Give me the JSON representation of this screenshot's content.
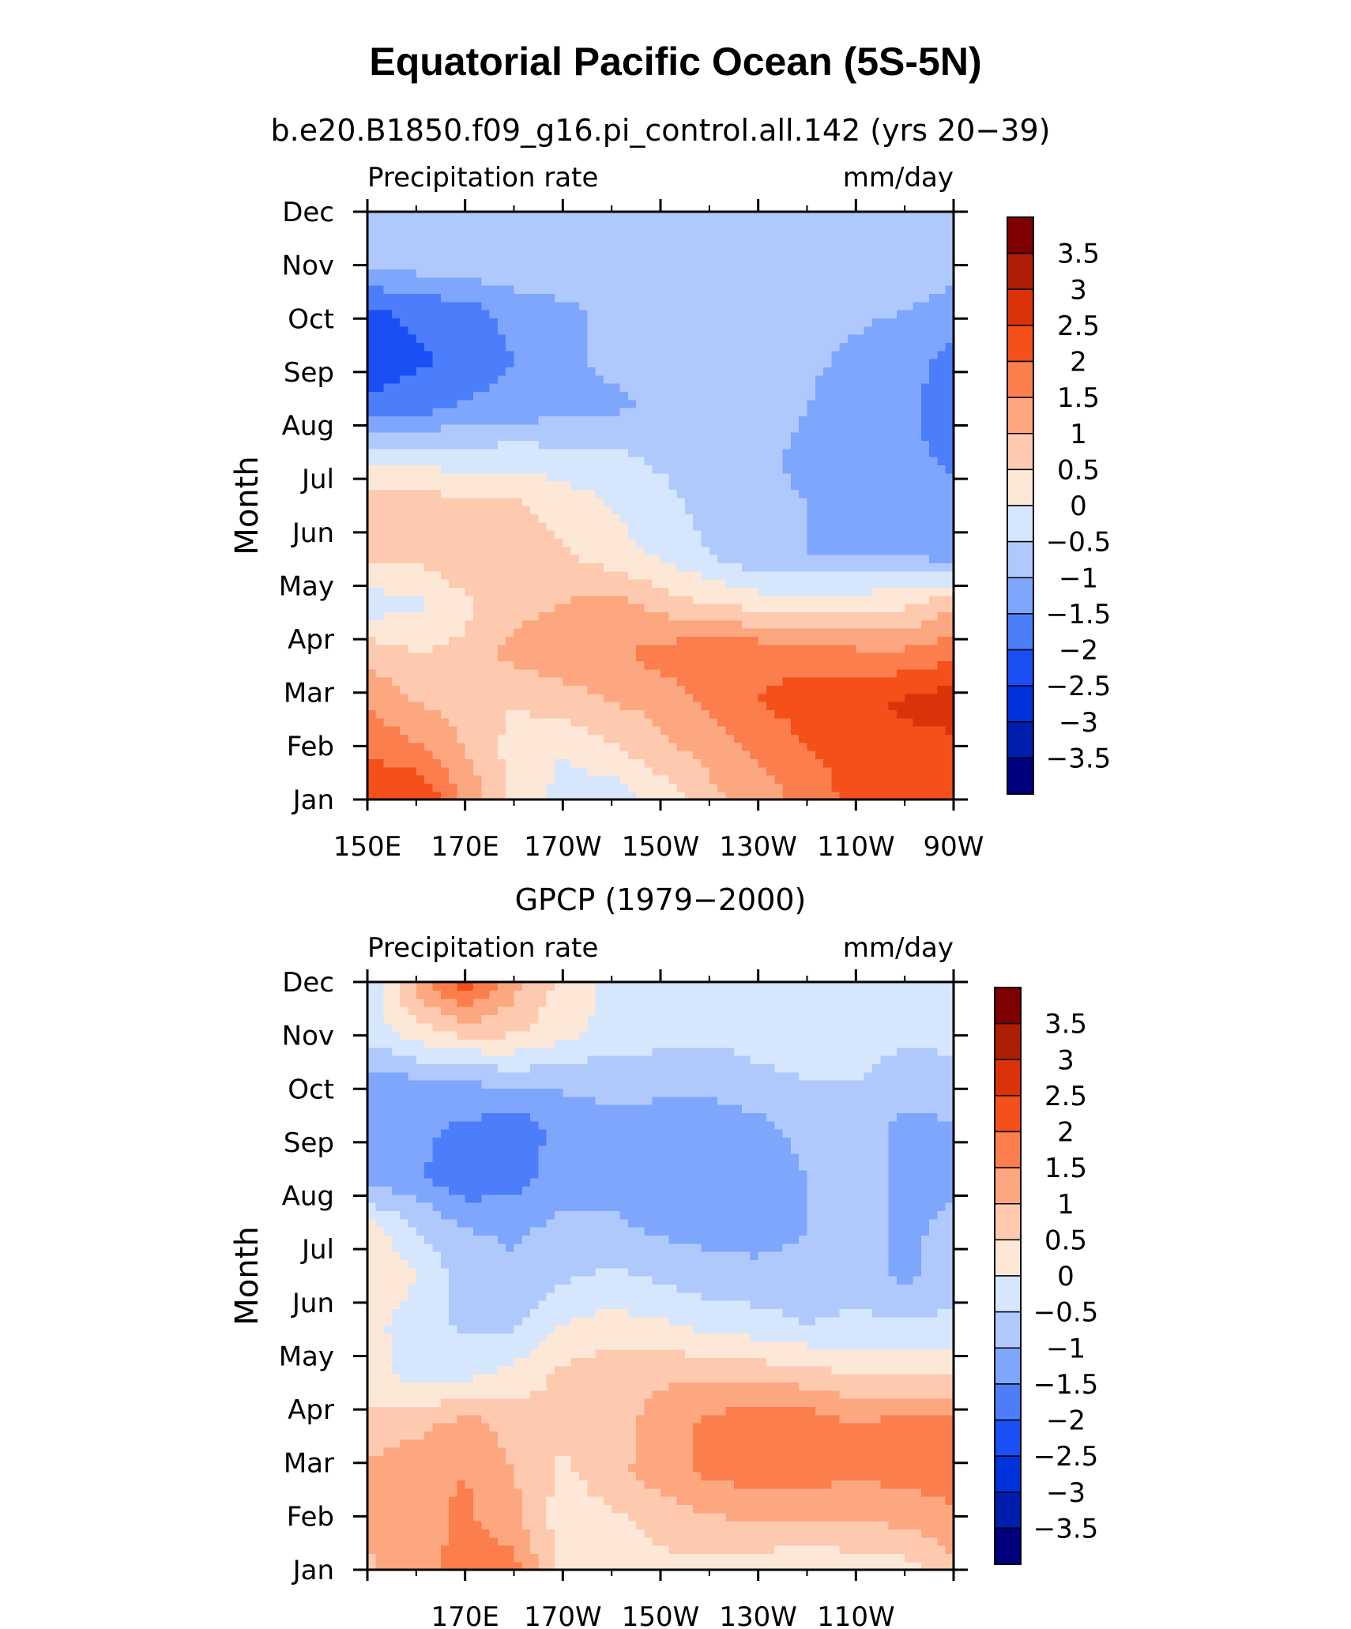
{
  "figure": {
    "title": "Equatorial Pacific Ocean (5S-5N)"
  },
  "palette": [
    "#00007f",
    "#001eae",
    "#0032db",
    "#1a4ff5",
    "#4c7dfb",
    "#7fa6fd",
    "#b0c9fd",
    "#d6e6fd",
    "#fde8d7",
    "#fdcab0",
    "#fca77f",
    "#fb7e4c",
    "#f54f1a",
    "#db320a",
    "#ae1e05",
    "#7f0000"
  ],
  "chart_data": [
    {
      "type": "heatmap",
      "title": "b.e20.B1850.f09_g16.pi_control.all.142 (yrs 20−39)",
      "left_label": "Precipitation rate",
      "right_label": "mm/day",
      "ylabel": "Month",
      "x_ticks": [
        "150E",
        "170E",
        "170W",
        "150W",
        "130W",
        "110W",
        "90W"
      ],
      "y_ticks": [
        "Jan",
        "Feb",
        "Mar",
        "Apr",
        "May",
        "Jun",
        "Jul",
        "Aug",
        "Sep",
        "Oct",
        "Nov",
        "Dec"
      ],
      "x_lon": [
        150,
        160,
        170,
        180,
        190,
        200,
        210,
        220,
        230,
        240,
        250,
        260,
        270
      ],
      "months": [
        "Jan",
        "Feb",
        "Mar",
        "Apr",
        "May",
        "Jun",
        "Jul",
        "Aug",
        "Sep",
        "Oct",
        "Nov",
        "Dec",
        "Dec"
      ],
      "z": [
        [
          2.2,
          2.6,
          1.4,
          0.4,
          -0.2,
          -0.4,
          0.2,
          0.8,
          1.2,
          1.7,
          2.2,
          2.3,
          2.4
        ],
        [
          2.0,
          1.6,
          1.0,
          0.3,
          0.0,
          0.4,
          0.8,
          1.2,
          1.6,
          2.0,
          2.1,
          2.3,
          2.3
        ],
        [
          1.4,
          1.0,
          0.8,
          0.5,
          0.8,
          1.0,
          1.2,
          1.6,
          2.0,
          2.2,
          2.3,
          2.6,
          2.8
        ],
        [
          0.8,
          0.5,
          0.6,
          1.2,
          1.3,
          1.4,
          1.7,
          1.9,
          1.9,
          1.8,
          1.6,
          1.6,
          1.8
        ],
        [
          -0.3,
          -0.1,
          0.4,
          0.8,
          1.0,
          1.2,
          0.8,
          0.5,
          0.3,
          0.3,
          0.3,
          0.4,
          0.9
        ],
        [
          0.7,
          0.6,
          0.9,
          0.8,
          0.6,
          0.2,
          -0.1,
          -0.5,
          -0.9,
          -1.0,
          -1.0,
          -1.0,
          -1.3
        ],
        [
          0.8,
          0.8,
          0.7,
          0.6,
          0.3,
          0.0,
          -0.3,
          -0.7,
          -0.9,
          -1.0,
          -1.1,
          -1.2,
          -1.3
        ],
        [
          -0.1,
          -0.2,
          -0.3,
          -0.2,
          -0.3,
          -0.4,
          -0.6,
          -0.8,
          -0.9,
          -1.1,
          -1.3,
          -1.4,
          -1.6
        ],
        [
          -1.9,
          -1.7,
          -1.4,
          -1.3,
          -1.2,
          -1.1,
          -0.9,
          -0.8,
          -0.8,
          -1.0,
          -1.3,
          -1.4,
          -1.7
        ],
        [
          -2.3,
          -2.1,
          -1.9,
          -1.5,
          -1.1,
          -0.9,
          -0.8,
          -0.7,
          -0.8,
          -0.9,
          -1.1,
          -1.3,
          -1.7
        ],
        [
          -2.1,
          -1.9,
          -1.7,
          -1.3,
          -1.1,
          -0.9,
          -0.7,
          -0.7,
          -0.8,
          -0.8,
          -0.9,
          -1.0,
          -1.2
        ],
        [
          -0.8,
          -0.7,
          -0.6,
          -0.6,
          -0.6,
          -0.6,
          -0.6,
          -0.6,
          -0.6,
          -0.6,
          -0.6,
          -0.7,
          -0.8
        ],
        [
          -0.8,
          -0.7,
          -0.6,
          -0.6,
          -0.6,
          -0.6,
          -0.6,
          -0.6,
          -0.6,
          -0.6,
          -0.6,
          -0.7,
          -0.8
        ]
      ],
      "levels": [
        -3.5,
        -3,
        -2.5,
        -2,
        -1.5,
        -1,
        -0.5,
        0,
        0.5,
        1,
        1.5,
        2,
        2.5,
        3,
        3.5
      ],
      "colorbar_labels": [
        "3.5",
        "3",
        "2.5",
        "2",
        "1.5",
        "1",
        "0.5",
        "0",
        "−0.5",
        "−1",
        "−1.5",
        "−2",
        "−2.5",
        "−3",
        "−3.5"
      ]
    },
    {
      "type": "heatmap",
      "title": "GPCP (1979−2000)",
      "left_label": "Precipitation rate",
      "right_label": "mm/day",
      "ylabel": "Month",
      "x_ticks": [
        "",
        "170E",
        "170W",
        "150W",
        "130W",
        "110W",
        ""
      ],
      "y_ticks": [
        "Jan",
        "Feb",
        "Mar",
        "Apr",
        "May",
        "Jun",
        "Jul",
        "Aug",
        "Sep",
        "Oct",
        "Nov",
        "Dec"
      ],
      "x_lon": [
        150,
        160,
        170,
        180,
        190,
        200,
        210,
        220,
        230,
        240,
        250,
        260,
        270
      ],
      "months": [
        "Jan",
        "Feb",
        "Mar",
        "Apr",
        "May",
        "Jun",
        "Jul",
        "Aug",
        "Sep",
        "Oct",
        "Nov",
        "Dec",
        "Dec"
      ],
      "z": [
        [
          0.9,
          1.3,
          1.7,
          1.7,
          0.3,
          0.3,
          0.4,
          0.3,
          0.2,
          -0.1,
          0.2,
          0.3,
          0.8
        ],
        [
          1.1,
          1.3,
          1.6,
          1.2,
          0.2,
          0.4,
          0.6,
          0.9,
          1.0,
          1.1,
          1.0,
          1.1,
          1.4
        ],
        [
          1.2,
          1.4,
          1.5,
          1.0,
          0.4,
          0.8,
          1.3,
          1.6,
          1.8,
          1.7,
          1.6,
          1.7,
          1.7
        ],
        [
          0.6,
          0.8,
          1.2,
          0.8,
          0.6,
          0.8,
          1.2,
          1.6,
          1.9,
          1.8,
          1.5,
          1.7,
          1.6
        ],
        [
          0.2,
          -0.2,
          -0.2,
          0.2,
          0.6,
          0.8,
          0.9,
          0.9,
          0.8,
          0.7,
          0.5,
          0.5,
          0.4
        ],
        [
          0.2,
          -0.3,
          -0.6,
          -0.6,
          0.0,
          0.2,
          0.1,
          -0.2,
          -0.3,
          -0.5,
          -0.4,
          -0.4,
          -0.4
        ],
        [
          0.5,
          0.0,
          -0.7,
          -0.9,
          -0.6,
          -0.4,
          -0.6,
          -0.8,
          -0.8,
          -0.8,
          -0.7,
          -1.1,
          -0.7
        ],
        [
          0.2,
          -0.5,
          -1.0,
          -1.1,
          -0.9,
          -0.9,
          -1.1,
          -1.2,
          -1.3,
          -1.0,
          -0.8,
          -1.1,
          -0.9
        ],
        [
          -1.2,
          -1.4,
          -1.9,
          -1.7,
          -1.2,
          -1.2,
          -1.3,
          -1.4,
          -1.3,
          -1.0,
          -0.7,
          -1.1,
          -1.1
        ],
        [
          -1.3,
          -1.4,
          -1.6,
          -1.9,
          -1.3,
          -1.2,
          -1.3,
          -1.4,
          -1.2,
          -0.8,
          -0.7,
          -1.2,
          -1.1
        ],
        [
          -1.2,
          -1.1,
          -1.0,
          -0.8,
          -0.9,
          -0.8,
          -0.8,
          -0.8,
          -0.6,
          -0.5,
          -0.5,
          -0.7,
          -0.6
        ],
        [
          -0.3,
          0.3,
          0.7,
          0.6,
          0.2,
          -0.2,
          -0.3,
          -0.4,
          -0.3,
          -0.3,
          -0.3,
          -0.4,
          -0.4
        ],
        [
          -0.6,
          1.2,
          2.3,
          1.2,
          0.3,
          -0.1,
          -0.3,
          -0.3,
          -0.3,
          -0.3,
          -0.3,
          -0.4,
          -0.4
        ]
      ],
      "levels": [
        -3.5,
        -3,
        -2.5,
        -2,
        -1.5,
        -1,
        -0.5,
        0,
        0.5,
        1,
        1.5,
        2,
        2.5,
        3,
        3.5
      ],
      "colorbar_labels": [
        "3.5",
        "3",
        "2.5",
        "2",
        "1.5",
        "1",
        "0.5",
        "0",
        "−0.5",
        "−1",
        "−1.5",
        "−2",
        "−2.5",
        "−3",
        "−3.5"
      ]
    }
  ]
}
